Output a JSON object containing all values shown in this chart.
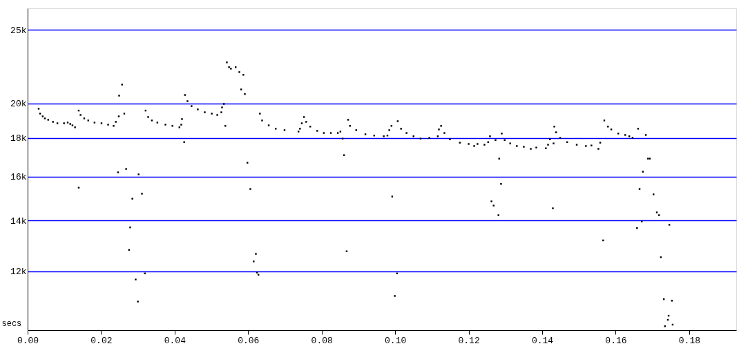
{
  "chart_data": {
    "type": "scatter",
    "xlabel": "secs",
    "xlim": [
      0,
      0.1928
    ],
    "ylim": [
      10030,
      26700
    ],
    "log": true,
    "grid": "y",
    "marker": "square",
    "xticks": [
      {
        "value": 0,
        "label": "0.00"
      },
      {
        "value": 0.02,
        "label": "0.02"
      },
      {
        "value": 0.04,
        "label": "0.04"
      },
      {
        "value": 0.06,
        "label": "0.06"
      },
      {
        "value": 0.08,
        "label": "0.08"
      },
      {
        "value": 0.1,
        "label": "0.10"
      },
      {
        "value": 0.12,
        "label": "0.12"
      },
      {
        "value": 0.14,
        "label": "0.14"
      },
      {
        "value": 0.16,
        "label": "0.16"
      },
      {
        "value": 0.18,
        "label": "0.18"
      }
    ],
    "yticks": [
      {
        "value": 12000,
        "label": "12k"
      },
      {
        "value": 14000,
        "label": "14k"
      },
      {
        "value": 16000,
        "label": "16k"
      },
      {
        "value": 18000,
        "label": "18k"
      },
      {
        "value": 20000,
        "label": "20k"
      },
      {
        "value": 25000,
        "label": "25k"
      }
    ],
    "series": [
      {
        "color": "#000000",
        "x": [
          0.003,
          0.0034,
          0.0041,
          0.0047,
          0.0056,
          0.0069,
          0.0081,
          0.0099,
          0.0109,
          0.0116,
          0.0122,
          0.0129,
          0.0139,
          0.0144,
          0.0154,
          0.0165,
          0.0182,
          0.0201,
          0.0219,
          0.0234,
          0.024,
          0.0248,
          0.0263,
          0.0249,
          0.0257,
          0.0139,
          0.0246,
          0.0268,
          0.0302,
          0.0285,
          0.0311,
          0.0279,
          0.0276,
          0.0294,
          0.0319,
          0.03,
          0.0321,
          0.0328,
          0.0338,
          0.0353,
          0.0375,
          0.0394,
          0.0413,
          0.0418,
          0.042,
          0.0426,
          0.0428,
          0.0435,
          0.0446,
          0.0463,
          0.0482,
          0.0501,
          0.0516,
          0.0527,
          0.0529,
          0.0534,
          0.0538,
          0.0542,
          0.0548,
          0.0553,
          0.0566,
          0.0576,
          0.0587,
          0.0581,
          0.0591,
          0.0632,
          0.0638,
          0.0656,
          0.0675,
          0.0699,
          0.0737,
          0.0741,
          0.0746,
          0.0752,
          0.0758,
          0.0769,
          0.0788,
          0.0806,
          0.0825,
          0.0844,
          0.0851,
          0.0857,
          0.0861,
          0.0872,
          0.0877,
          0.0894,
          0.0919,
          0.0943,
          0.0969,
          0.0979,
          0.0984,
          0.099,
          0.1007,
          0.1016,
          0.1031,
          0.105,
          0.1069,
          0.1093,
          0.1116,
          0.1119,
          0.1125,
          0.1134,
          0.1149,
          0.1176,
          0.12,
          0.1215,
          0.1224,
          0.1243,
          0.1253,
          0.1258,
          0.0992,
          0.1005,
          0.0999,
          0.0868,
          0.0598,
          0.0606,
          0.0615,
          0.0621,
          0.0624,
          0.0628,
          0.1273,
          0.1283,
          0.1288,
          0.1262,
          0.1268,
          0.1281,
          0.129,
          0.1298,
          0.1313,
          0.1331,
          0.135,
          0.1369,
          0.1384,
          0.141,
          0.1416,
          0.1421,
          0.1431,
          0.1433,
          0.1438,
          0.1449,
          0.1468,
          0.1494,
          0.1519,
          0.1534,
          0.1553,
          0.1558,
          0.1429,
          0.1566,
          0.1569,
          0.1579,
          0.1588,
          0.1607,
          0.1626,
          0.1637,
          0.1646,
          0.1661,
          0.1682,
          0.1688,
          0.1693,
          0.1674,
          0.1665,
          0.1703,
          0.1712,
          0.1718,
          0.1671,
          0.1658,
          0.1746,
          0.1723,
          0.1731,
          0.1753,
          0.1744,
          0.1742,
          0.1734,
          0.1755
        ],
        "values": [
          19670,
          19380,
          19220,
          19100,
          19020,
          18900,
          18820,
          18820,
          18860,
          18780,
          18700,
          18590,
          19560,
          19300,
          19100,
          18980,
          18860,
          18820,
          18740,
          18670,
          18900,
          19220,
          19380,
          20470,
          21170,
          15470,
          16210,
          16380,
          16110,
          14960,
          15190,
          13710,
          12800,
          11700,
          11920,
          10940,
          19560,
          19180,
          18980,
          18860,
          18740,
          18670,
          18590,
          18740,
          19060,
          17770,
          20510,
          20130,
          19830,
          19630,
          19460,
          19380,
          19300,
          19460,
          19750,
          19960,
          18670,
          22650,
          22320,
          22220,
          22320,
          21990,
          21810,
          20860,
          20570,
          19380,
          18980,
          18700,
          18510,
          18430,
          18350,
          18510,
          18820,
          19180,
          18900,
          18630,
          18390,
          18270,
          18270,
          18270,
          18350,
          17960,
          17080,
          19020,
          18670,
          18430,
          18200,
          18130,
          18090,
          18130,
          18430,
          18670,
          18940,
          18510,
          18270,
          18090,
          17960,
          18000,
          18090,
          18470,
          18670,
          18270,
          17920,
          17740,
          17670,
          17560,
          17670,
          17630,
          17770,
          18090,
          15060,
          11920,
          11130,
          12750,
          16690,
          15410,
          12360,
          12650,
          11950,
          11870,
          17880,
          16900,
          15650,
          14840,
          14650,
          14230,
          18240,
          17880,
          17700,
          17560,
          17520,
          17410,
          17480,
          17440,
          17630,
          17920,
          17700,
          18630,
          18310,
          18000,
          17770,
          17630,
          17560,
          17590,
          17410,
          17740,
          14530,
          13180,
          18980,
          18630,
          18470,
          18240,
          18160,
          18090,
          18000,
          18510,
          18160,
          16900,
          16900,
          16240,
          15410,
          15160,
          14350,
          14230,
          13960,
          13680,
          13820,
          12520,
          11020,
          10970,
          10480,
          10350,
          10150,
          10200
        ]
      }
    ]
  }
}
